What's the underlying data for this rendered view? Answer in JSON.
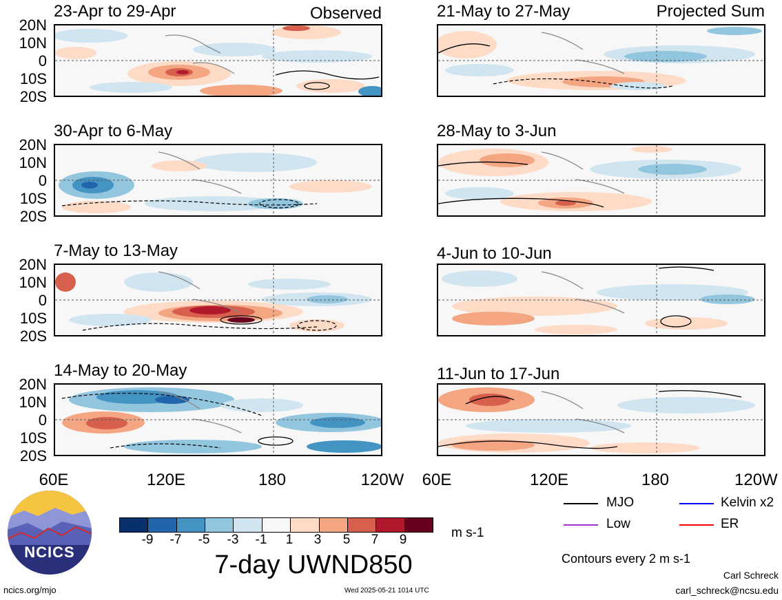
{
  "columns": {
    "left_tag": "Observed",
    "right_tag": "Projected Sum"
  },
  "panels": [
    {
      "title": "23-Apr to 29-Apr"
    },
    {
      "title": "30-Apr to 6-May"
    },
    {
      "title": "7-May to 13-May"
    },
    {
      "title": "14-May to 20-May"
    },
    {
      "title": "21-May to 27-May"
    },
    {
      "title": "28-May to 3-Jun"
    },
    {
      "title": "4-Jun to 10-Jun"
    },
    {
      "title": "11-Jun to 17-Jun"
    }
  ],
  "lat_labels": [
    "20N",
    "10N",
    "0",
    "10S",
    "20S"
  ],
  "lon_labels": [
    "60E",
    "120E",
    "180",
    "120W"
  ],
  "colorbar": {
    "colors": [
      "#08306b",
      "#2166ac",
      "#4393c3",
      "#92c5de",
      "#d1e5f0",
      "#f7f7f7",
      "#fddbc7",
      "#f4a582",
      "#d6604d",
      "#b2182b",
      "#67001f"
    ],
    "labels": [
      "-9",
      "-7",
      "-5",
      "-3",
      "-1",
      "1",
      "3",
      "5",
      "7",
      "9"
    ],
    "units": "m s-1"
  },
  "main_title": "7-day UWND850",
  "legend": {
    "items": [
      {
        "label": "MJO",
        "color": "#000000"
      },
      {
        "label": "Kelvin x2",
        "color": "#0000ff"
      },
      {
        "label": "Low",
        "color": "#9932cc"
      },
      {
        "label": "ER",
        "color": "#ff0000"
      }
    ],
    "contour_note": "Contours every 2 m s-1"
  },
  "logo": {
    "text": "NCICS"
  },
  "footer": {
    "site": "ncics.org/mjo",
    "timestamp": "Wed 2025-05-21 1014 UTC",
    "author": "Carl Schreck",
    "email": "carl_schreck@ncsu.edu"
  }
}
